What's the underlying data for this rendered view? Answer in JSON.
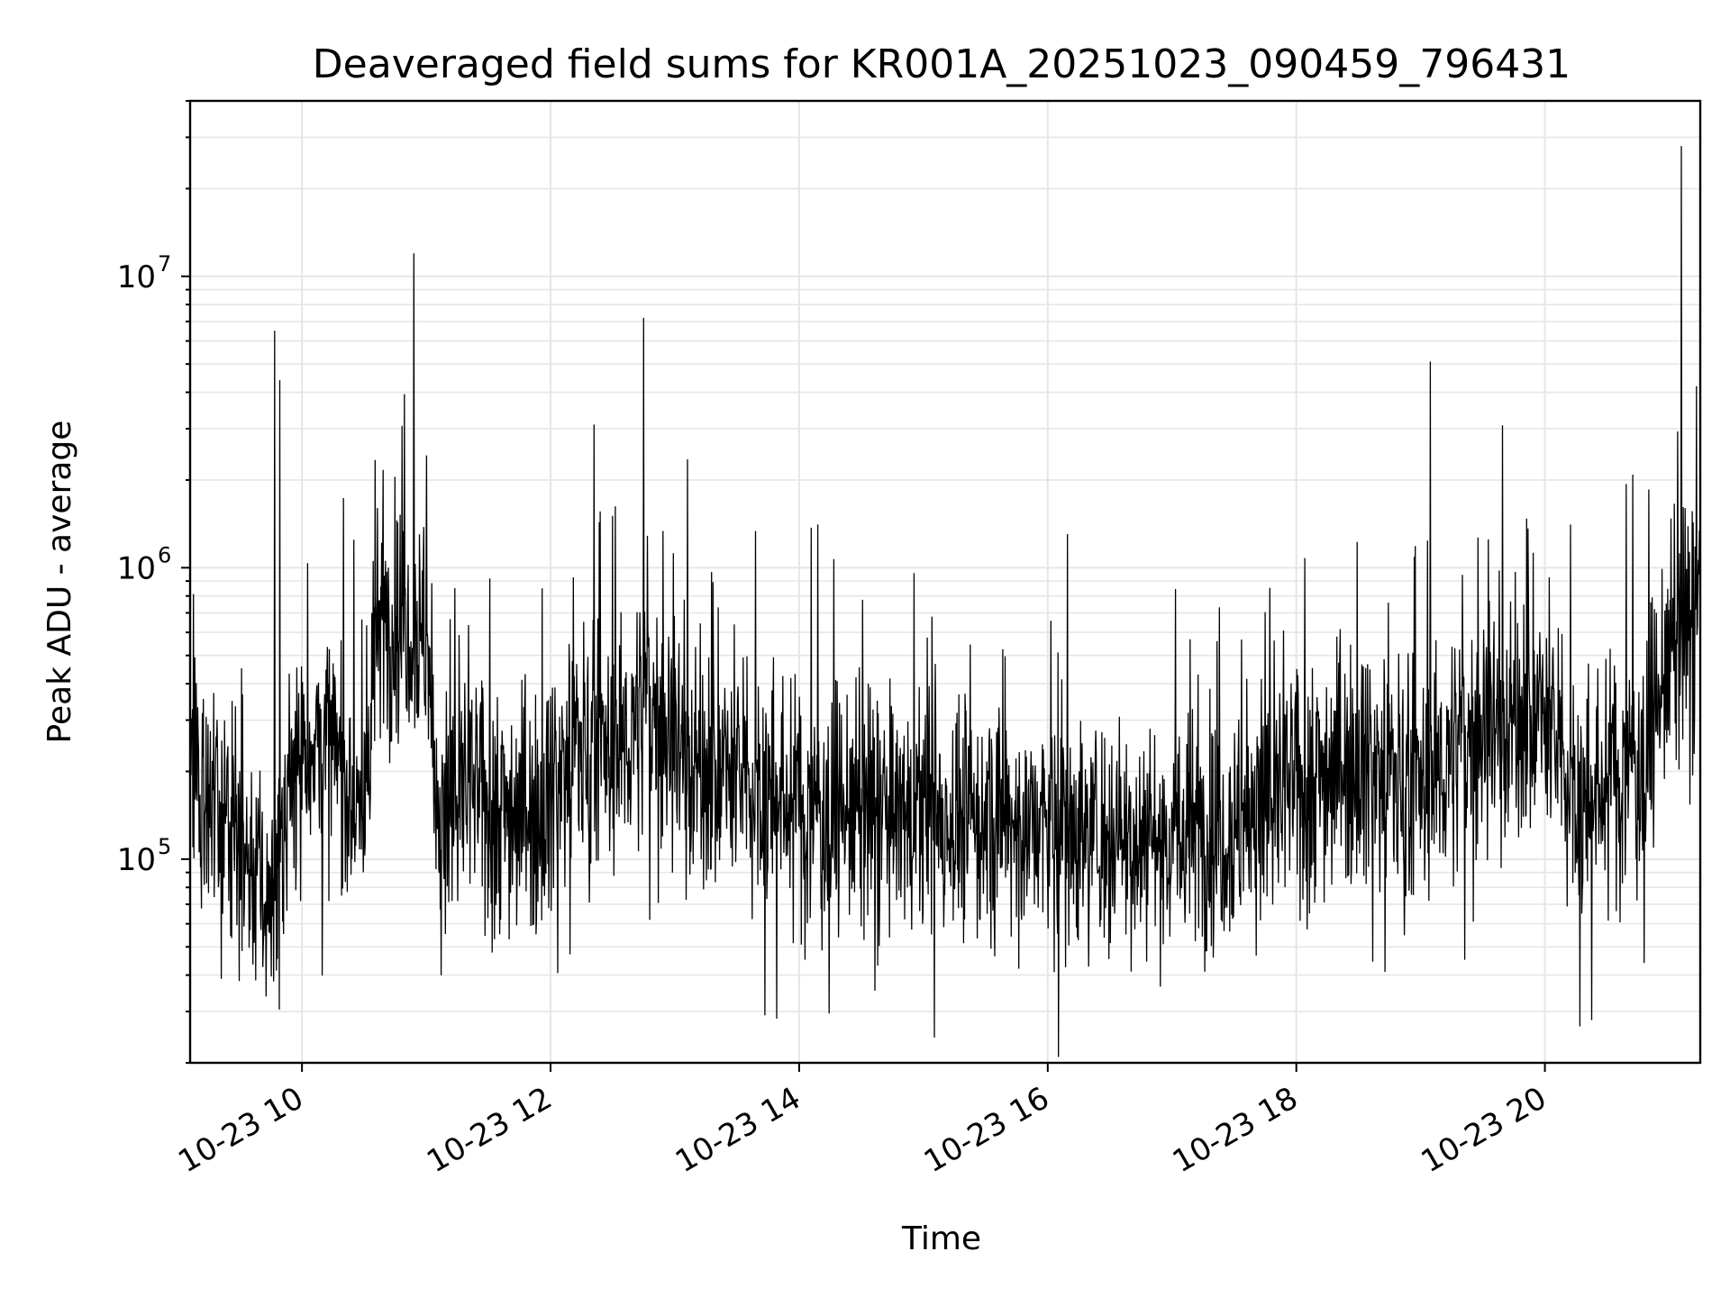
{
  "chart_data": {
    "type": "line",
    "title": "Deaveraged field sums for KR001A_20251023_090459_796431",
    "xlabel": "Time",
    "ylabel": "Peak ADU - average",
    "yscale": "log",
    "ylim": [
      20000,
      40000000
    ],
    "xlim_hours": [
      9.1,
      21.25
    ],
    "x_ticks": [
      {
        "hour": 10,
        "label": "10-23 10"
      },
      {
        "hour": 12,
        "label": "10-23 12"
      },
      {
        "hour": 14,
        "label": "10-23 14"
      },
      {
        "hour": 16,
        "label": "10-23 16"
      },
      {
        "hour": 18,
        "label": "10-23 18"
      },
      {
        "hour": 20,
        "label": "10-23 20"
      }
    ],
    "y_ticks": [
      {
        "value": 100000,
        "base": "10",
        "exp": "5"
      },
      {
        "value": 1000000,
        "base": "10",
        "exp": "6"
      },
      {
        "value": 10000000,
        "base": "10",
        "exp": "7"
      }
    ],
    "grid": true,
    "series": [
      {
        "name": "deaveraged field sums",
        "color": "#000000",
        "envelope_hours": [
          9.1,
          9.5,
          9.75,
          10.0,
          10.2,
          10.5,
          10.6,
          10.8,
          11.0,
          11.1,
          11.3,
          11.6,
          11.9,
          12.2,
          12.5,
          12.8,
          13.2,
          13.5,
          14.0,
          15.0,
          16.0,
          17.0,
          17.5,
          18.0,
          18.5,
          19.0,
          19.5,
          20.0,
          20.3,
          20.7,
          20.8,
          21.0,
          21.25
        ],
        "envelope_values": [
          220000,
          110000,
          70000,
          250000,
          250000,
          140000,
          600000,
          700000,
          600000,
          120000,
          180000,
          150000,
          150000,
          250000,
          220000,
          350000,
          200000,
          190000,
          150000,
          140000,
          130000,
          120000,
          130000,
          180000,
          230000,
          170000,
          300000,
          300000,
          150000,
          220000,
          220000,
          500000,
          700000
        ],
        "spikes": [
          {
            "hour": 9.78,
            "value": 6500000
          },
          {
            "hour": 9.82,
            "value": 4400000
          },
          {
            "hour": 10.9,
            "value": 12000000
          },
          {
            "hour": 12.75,
            "value": 7200000
          },
          {
            "hour": 12.35,
            "value": 3100000
          },
          {
            "hour": 19.08,
            "value": 5100000
          },
          {
            "hour": 21.1,
            "value": 28000000
          },
          {
            "hour": 21.22,
            "value": 4200000
          }
        ]
      }
    ]
  }
}
